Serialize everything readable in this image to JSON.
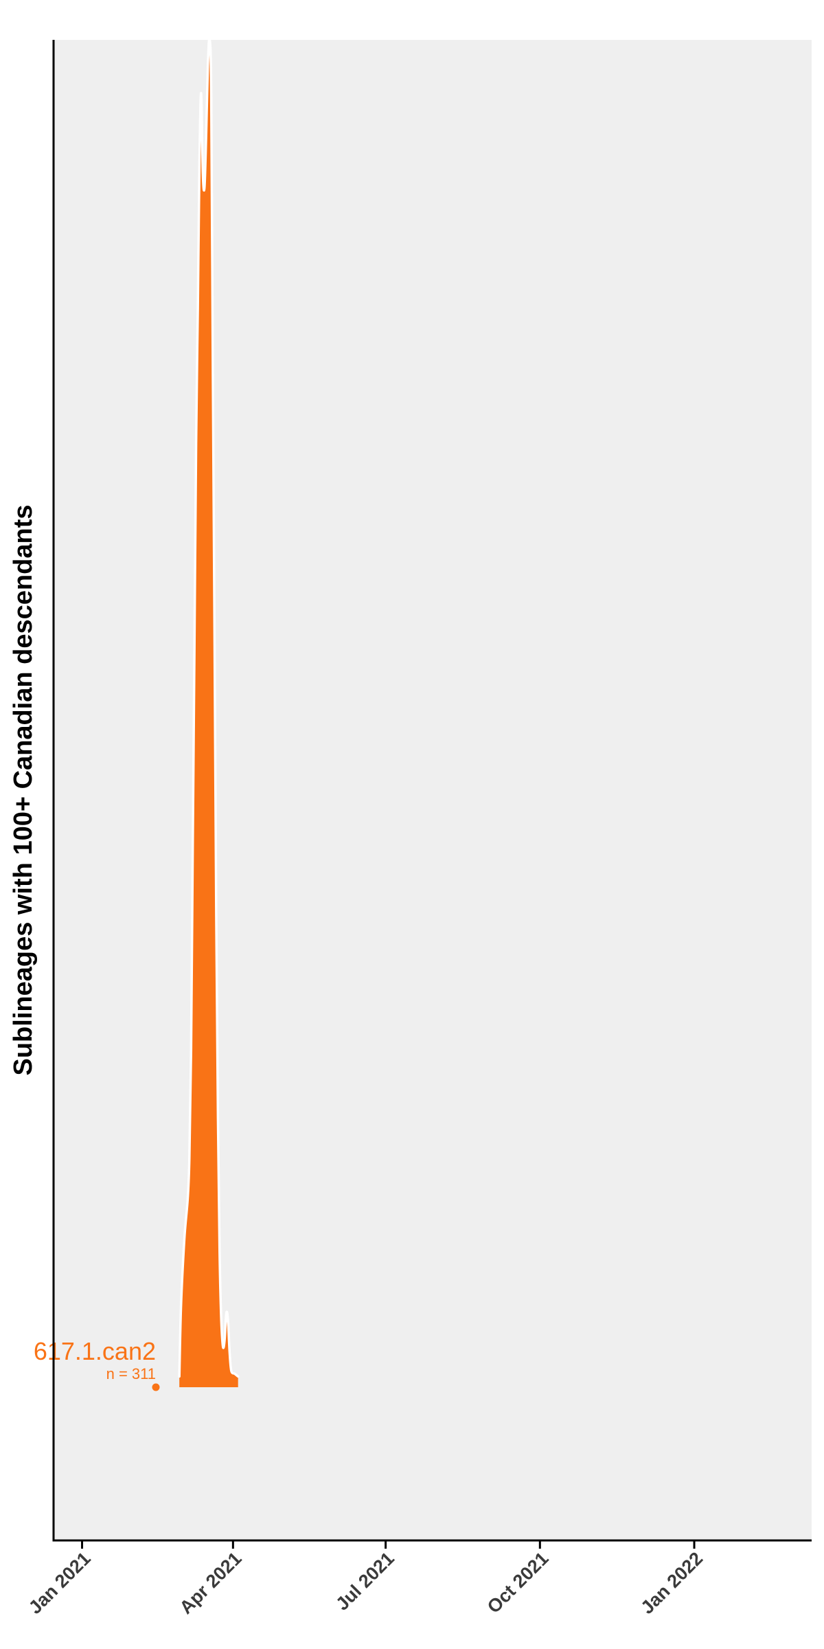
{
  "chart_data": {
    "type": "area",
    "title": "",
    "xlabel": "",
    "ylabel": "Sublineages with 100+ Canadian descendants",
    "x_axis": {
      "type": "date",
      "ticks": [
        "2021-01-01",
        "2021-04-01",
        "2021-07-01",
        "2021-10-01",
        "2022-01-01"
      ],
      "tick_labels": [
        "Jan 2021",
        "Apr 2021",
        "Jul 2021",
        "Oct 2021",
        "Jan 2022"
      ],
      "xlim": [
        "2020-12-15",
        "2022-03-12"
      ]
    },
    "background_color": "#efefef",
    "grid": false,
    "legend": "none",
    "series": [
      {
        "name": "617.1.can2",
        "count_label": "n =  311",
        "color": "#f97316",
        "origin_date": "2021-02-14",
        "density_ridge": [
          [
            "2021-02-28",
            0.008
          ],
          [
            "2021-03-01",
            0.06
          ],
          [
            "2021-03-03",
            0.11
          ],
          [
            "2021-03-05",
            0.14
          ],
          [
            "2021-03-06",
            0.17
          ],
          [
            "2021-03-07",
            0.25
          ],
          [
            "2021-03-08",
            0.4
          ],
          [
            "2021-03-09",
            0.55
          ],
          [
            "2021-03-10",
            0.7
          ],
          [
            "2021-03-11",
            0.8
          ],
          [
            "2021-03-12",
            0.91
          ],
          [
            "2021-03-13",
            0.96
          ],
          [
            "2021-03-14",
            0.9
          ],
          [
            "2021-03-15",
            0.89
          ],
          [
            "2021-03-16",
            0.93
          ],
          [
            "2021-03-17",
            0.98
          ],
          [
            "2021-03-18",
            1.0
          ],
          [
            "2021-03-19",
            0.96
          ],
          [
            "2021-03-20",
            0.75
          ],
          [
            "2021-03-21",
            0.55
          ],
          [
            "2021-03-22",
            0.35
          ],
          [
            "2021-03-23",
            0.2
          ],
          [
            "2021-03-24",
            0.1
          ],
          [
            "2021-03-25",
            0.05
          ],
          [
            "2021-03-26",
            0.03
          ],
          [
            "2021-03-27",
            0.035
          ],
          [
            "2021-03-28",
            0.055
          ],
          [
            "2021-03-29",
            0.05
          ],
          [
            "2021-03-30",
            0.025
          ],
          [
            "2021-03-31",
            0.012
          ],
          [
            "2021-04-02",
            0.01
          ],
          [
            "2021-04-04",
            0.008
          ]
        ]
      }
    ]
  }
}
